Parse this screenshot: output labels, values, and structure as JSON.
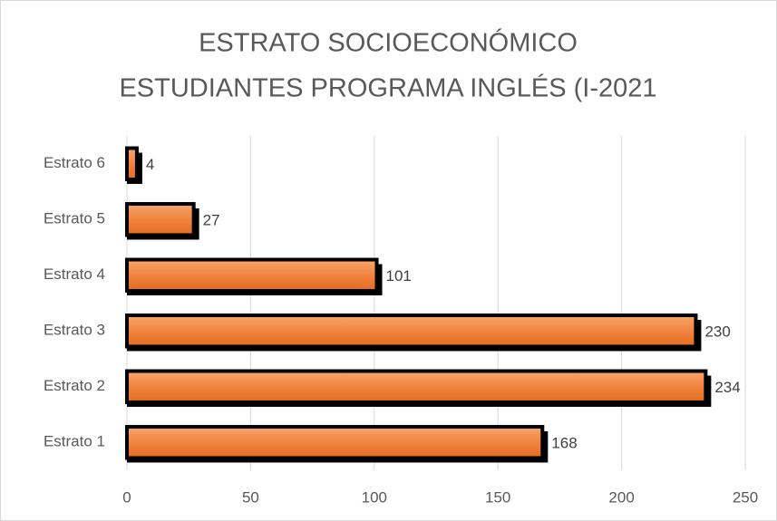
{
  "chart_data": {
    "type": "bar",
    "orientation": "horizontal",
    "title": [
      "ESTRATO SOCIOECONÓMICO",
      "ESTUDIANTES PROGRAMA INGLÉS (I-2021"
    ],
    "categories": [
      "Estrato 1",
      "Estrato 2",
      "Estrato 3",
      "Estrato 4",
      "Estrato 5",
      "Estrato 6"
    ],
    "values": [
      168,
      234,
      230,
      101,
      27,
      4
    ],
    "color": "#ed7d31",
    "xlim": [
      0,
      250
    ],
    "xticks": [
      0,
      50,
      100,
      150,
      200,
      250
    ],
    "grid": true
  }
}
